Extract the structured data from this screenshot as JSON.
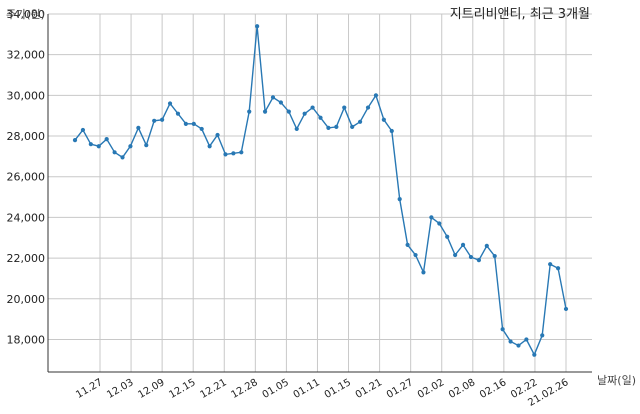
{
  "chart_data": {
    "type": "line",
    "title": "지트리비앤티, 최근 3개월",
    "ylabel": "주가(원)",
    "xlabel": "날짜(일)",
    "ylim": [
      16400,
      34000
    ],
    "yticks": [
      18000,
      20000,
      22000,
      24000,
      26000,
      28000,
      30000,
      32000,
      34000
    ],
    "ytick_labels": [
      "18,000",
      "20,000",
      "22,000",
      "24,000",
      "26,000",
      "28,000",
      "30,000",
      "32,000",
      "34,000"
    ],
    "xticks": [
      "11.27",
      "12.03",
      "12.09",
      "12.15",
      "12.21",
      "12.28",
      "01.05",
      "01.11",
      "01.15",
      "01.21",
      "01.27",
      "02.02",
      "02.08",
      "02.16",
      "02.22",
      "21.02.26"
    ],
    "grid": true,
    "accent_color": "#2878b4",
    "series": [
      {
        "name": "",
        "values": [
          27800,
          28300,
          27600,
          27500,
          27850,
          27200,
          26950,
          27500,
          28400,
          27550,
          28750,
          28800,
          29600,
          29100,
          28600,
          28600,
          28350,
          27500,
          28050,
          27100,
          27150,
          27200,
          29200,
          33400,
          29200,
          29900,
          29650,
          29200,
          28350,
          29100,
          29400,
          28900,
          28400,
          28450,
          29400,
          28450,
          28700,
          29400,
          30000,
          28800,
          28250,
          24900,
          22650,
          22150,
          21300,
          24000,
          23700,
          23050,
          22150,
          22650,
          22050,
          21900,
          22600,
          22100,
          18500,
          17900,
          17700,
          18000,
          17250,
          18200,
          21700,
          21500,
          19500
        ]
      }
    ]
  }
}
